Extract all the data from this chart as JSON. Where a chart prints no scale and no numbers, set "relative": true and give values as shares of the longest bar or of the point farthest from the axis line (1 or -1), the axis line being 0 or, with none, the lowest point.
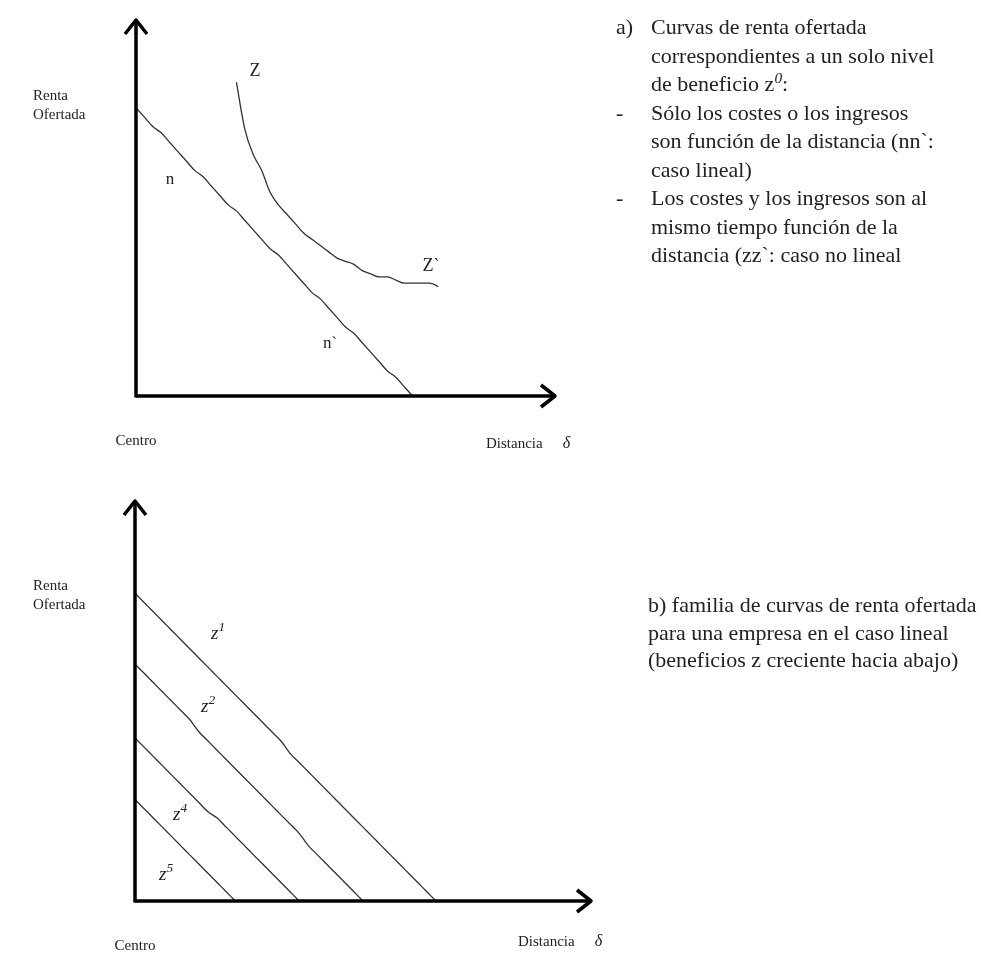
{
  "chart_data": [
    {
      "type": "line",
      "relative": true,
      "ylabel": "Renta Ofertada",
      "xlabel": "Distancia δ",
      "line_style": "solid",
      "categories": [
        null,
        null,
        null,
        null,
        null,
        null,
        null,
        null,
        null,
        null,
        null,
        null,
        null,
        null,
        null,
        null,
        null,
        null,
        null,
        null,
        null,
        null,
        null,
        null,
        null,
        null,
        null,
        null,
        null,
        null,
        null,
        null,
        null,
        null,
        null,
        null,
        null,
        null,
        null,
        null,
        null,
        null,
        null,
        null,
        null,
        null,
        null,
        null,
        null,
        null,
        null
      ],
      "series": [
        {
          "color": "#333333",
          "values": [
            0.92,
            0.89,
            0.86,
            0.84,
            0.81,
            0.78,
            0.75,
            0.72,
            0.7,
            0.67,
            0.64,
            0.61,
            0.59,
            0.56,
            0.53,
            0.5,
            0.47,
            0.45,
            0.42,
            0.39,
            0.36,
            0.33,
            0.31,
            0.28,
            0.25,
            0.22,
            0.2,
            0.17,
            0.14,
            0.11,
            0.08,
            0.06,
            0.03,
            0,
            null,
            null,
            null,
            null,
            null,
            null,
            null,
            null,
            null,
            null,
            null,
            null,
            null,
            null,
            null,
            null,
            null
          ]
        },
        {
          "color": "#333333",
          "values": [
            null,
            null,
            null,
            null,
            null,
            null,
            null,
            null,
            null,
            null,
            null,
            null,
            1.0,
            0.85,
            0.77,
            0.72,
            0.65,
            0.61,
            0.58,
            0.55,
            0.52,
            0.5,
            0.48,
            0.46,
            0.44,
            0.43,
            0.42,
            0.4,
            0.39,
            0.38,
            0.38,
            0.37,
            0.36,
            0.36,
            0.36,
            0.36,
            0.35,
            null,
            null,
            null,
            null,
            null,
            null,
            null,
            null,
            null,
            null,
            null,
            null,
            null,
            null
          ]
        }
      ],
      "annotations": [
        "Centro",
        "n",
        "n`",
        "Z",
        "Z`",
        "a) Curvas de renta ofertada correspondientes a un solo nivel de beneficio z$^{0}$:",
        "- Sólo los costes o los ingresos son función de la distancia (nn`: caso lineal)",
        "- Los costes y los ingresos son al mismo tiempo función de la distancia (zz`: caso no lineal"
      ]
    },
    {
      "type": "line",
      "relative": true,
      "ylabel": "Renta Ofertada",
      "xlabel": "Distancia δ",
      "line_style": "solid",
      "categories": [
        null,
        null,
        null,
        null,
        null,
        null,
        null,
        null,
        null,
        null,
        null,
        null,
        null,
        null,
        null,
        null,
        null,
        null,
        null,
        null,
        null,
        null,
        null,
        null,
        null,
        null,
        null,
        null,
        null,
        null,
        null,
        null,
        null,
        null,
        null,
        null,
        null,
        null,
        null,
        null,
        null,
        null,
        null,
        null,
        null,
        null,
        null,
        null,
        null,
        null,
        null
      ],
      "series": [
        {
          "name": "z$^{1}$",
          "color": "#333333",
          "values": [
            1,
            0.97,
            0.94,
            0.91,
            0.88,
            0.85,
            0.82,
            0.79,
            0.76,
            0.73,
            0.7,
            0.67,
            0.64,
            0.61,
            0.58,
            0.55,
            0.52,
            0.48,
            0.45,
            0.42,
            0.39,
            0.36,
            0.33,
            0.3,
            0.27,
            0.24,
            0.21,
            0.18,
            0.15,
            0.12,
            0.09,
            0.06,
            0.03,
            0,
            null,
            null,
            null,
            null,
            null,
            null,
            null,
            null,
            null,
            null,
            null,
            null,
            null,
            null,
            null,
            null,
            null
          ]
        },
        {
          "name": "z$^{2}$",
          "color": "#333333",
          "values": [
            0.77,
            0.74,
            0.71,
            0.68,
            0.65,
            0.62,
            0.59,
            0.55,
            0.52,
            0.49,
            0.46,
            0.43,
            0.4,
            0.37,
            0.34,
            0.31,
            0.28,
            0.25,
            0.22,
            0.18,
            0.15,
            0.12,
            0.09,
            0.06,
            0.03,
            0,
            null,
            null,
            null,
            null,
            null,
            null,
            null,
            null,
            null,
            null,
            null,
            null,
            null,
            null,
            null,
            null,
            null,
            null,
            null,
            null,
            null,
            null,
            null,
            null,
            null
          ]
        },
        {
          "name": "z$^{4}$",
          "color": "#333333",
          "values": [
            0.53,
            0.5,
            0.47,
            0.44,
            0.41,
            0.38,
            0.35,
            0.32,
            0.29,
            0.27,
            0.24,
            0.21,
            0.18,
            0.15,
            0.12,
            0.09,
            0.06,
            0.03,
            0,
            null,
            null,
            null,
            null,
            null,
            null,
            null,
            null,
            null,
            null,
            null,
            null,
            null,
            null,
            null,
            null,
            null,
            null,
            null,
            null,
            null,
            null,
            null,
            null,
            null,
            null,
            null,
            null,
            null,
            null,
            null,
            null
          ]
        },
        {
          "name": "z$^{5}$",
          "color": "#333333",
          "values": [
            0.33,
            0.3,
            0.27,
            0.24,
            0.21,
            0.18,
            0.15,
            0.12,
            0.09,
            0.06,
            0.03,
            0,
            null,
            null,
            null,
            null,
            null,
            null,
            null,
            null,
            null,
            null,
            null,
            null,
            null,
            null,
            null,
            null,
            null,
            null,
            null,
            null,
            null,
            null,
            null,
            null,
            null,
            null,
            null,
            null,
            null,
            null,
            null,
            null,
            null,
            null,
            null,
            null,
            null,
            null,
            null
          ]
        }
      ],
      "annotations": [
        "Centro",
        "b) familia de curvas de renta ofertada para una empresa en el caso lineal (beneficios z creciente hacia abajo)"
      ]
    }
  ]
}
